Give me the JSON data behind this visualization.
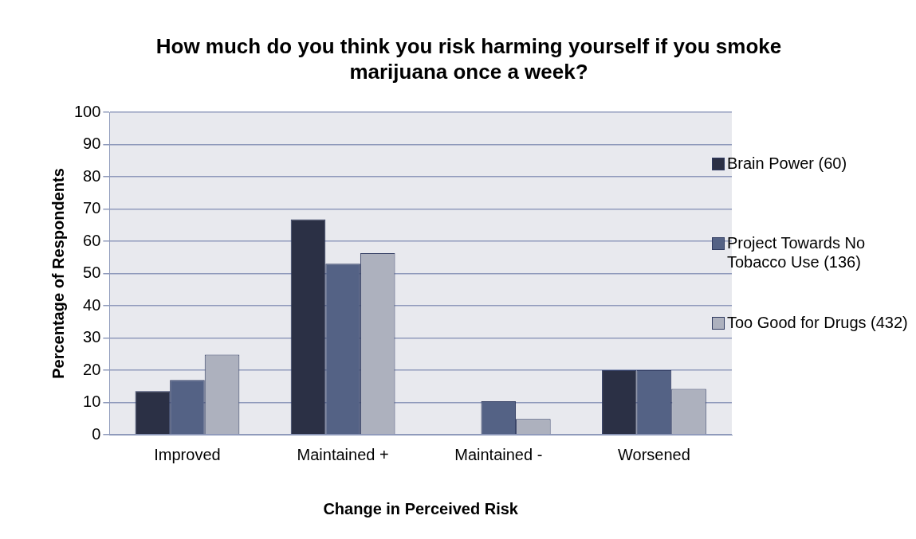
{
  "chart_data": {
    "type": "bar",
    "title": "How much do you think you risk harming yourself if you smoke marijuana once a week?",
    "xlabel": "Change in Perceived Risk",
    "ylabel": "Percentage of Respondents",
    "categories": [
      "Improved",
      "Maintained +",
      "Maintained -",
      "Worsened"
    ],
    "series": [
      {
        "name": "Brain Power (60)",
        "color": "#2b3045",
        "values": [
          13.5,
          66.8,
          0,
          20
        ]
      },
      {
        "name": "Project Towards No Tobacco Use (136)",
        "color": "#546285",
        "values": [
          17,
          53,
          10.4,
          20
        ]
      },
      {
        "name": "Too Good for Drugs (432)",
        "color": "#adb1be",
        "values": [
          24.8,
          56.3,
          4.9,
          14.2
        ]
      }
    ],
    "ylim": [
      0,
      100
    ],
    "yticks": [
      0,
      10,
      20,
      30,
      40,
      50,
      60,
      70,
      80,
      90,
      100
    ],
    "grid": "y",
    "legend": "right"
  }
}
